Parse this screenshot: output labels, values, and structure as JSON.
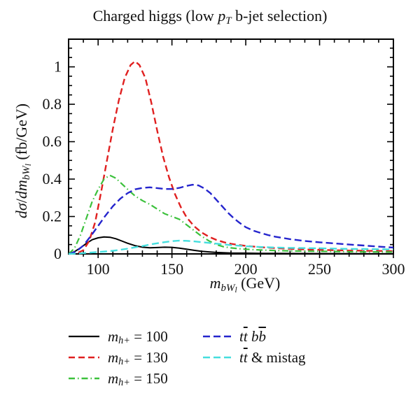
{
  "chart_data": {
    "type": "line",
    "title": "Charged higgs (low pT b-jet selection)",
    "title_rich": [
      [
        "r",
        "Charged higgs (low "
      ],
      [
        "i",
        "p"
      ],
      [
        "subi",
        "T"
      ],
      [
        "r",
        " b-jet selection)"
      ]
    ],
    "xlabel": "m_bWl (GeV)",
    "xlabel_rich": [
      [
        "i",
        "m"
      ],
      [
        "subi",
        "bW"
      ],
      [
        "subsubi",
        "l"
      ],
      [
        "r",
        " (GeV)"
      ]
    ],
    "ylabel": "dσ/dm_bWl (fb/GeV)",
    "ylabel_rich": [
      [
        "i",
        "dσ"
      ],
      [
        "r",
        "/"
      ],
      [
        "i",
        "dm"
      ],
      [
        "subi",
        "bW"
      ],
      [
        "subsubi",
        "l"
      ],
      [
        "r",
        " (fb/GeV)"
      ]
    ],
    "xlim": [
      80,
      300
    ],
    "ylim": [
      0,
      1.148
    ],
    "x_major_ticks": [
      100,
      150,
      200,
      250,
      300
    ],
    "x_major_labels": [
      "100",
      "150",
      "200",
      "250",
      "300"
    ],
    "x_minor_step": 10,
    "y_major_ticks": [
      0,
      0.2,
      0.4,
      0.6,
      0.8,
      1
    ],
    "y_major_labels": [
      "0",
      "0.2",
      "0.4",
      "0.6",
      "0.8",
      "1"
    ],
    "y_minor_step": 0.05,
    "grid": false,
    "legend_position": "below-two-columns",
    "legend_columns": [
      [
        0,
        1,
        2
      ],
      [
        3,
        4
      ]
    ],
    "axis_color": "#000000",
    "series": [
      {
        "name": "mh-100",
        "label": "m_h+ = 100",
        "label_rich": [
          [
            "i",
            "m"
          ],
          [
            "subi",
            "h+"
          ],
          [
            "r",
            " = 100"
          ]
        ],
        "color": "#000000",
        "width": 2,
        "dash": [],
        "points": [
          [
            80,
            0
          ],
          [
            84,
            0.012
          ],
          [
            88,
            0.032
          ],
          [
            92,
            0.056
          ],
          [
            96,
            0.076
          ],
          [
            100,
            0.086
          ],
          [
            104,
            0.091
          ],
          [
            108,
            0.089
          ],
          [
            112,
            0.081
          ],
          [
            116,
            0.069
          ],
          [
            120,
            0.057
          ],
          [
            125,
            0.044
          ],
          [
            130,
            0.036
          ],
          [
            135,
            0.033
          ],
          [
            140,
            0.034
          ],
          [
            145,
            0.036
          ],
          [
            150,
            0.035
          ],
          [
            155,
            0.031
          ],
          [
            160,
            0.025
          ],
          [
            165,
            0.019
          ],
          [
            170,
            0.014
          ],
          [
            175,
            0.011
          ],
          [
            180,
            0.008
          ],
          [
            190,
            0.005
          ],
          [
            200,
            0.004
          ],
          [
            210,
            0.003
          ],
          [
            220,
            0.0025
          ],
          [
            240,
            0.002
          ],
          [
            260,
            0.0015
          ],
          [
            280,
            0.001
          ],
          [
            300,
            0.001
          ]
        ]
      },
      {
        "name": "mh-130",
        "label": "m_h+ = 130",
        "label_rich": [
          [
            "i",
            "m"
          ],
          [
            "subi",
            "h+"
          ],
          [
            "r",
            " = 130"
          ]
        ],
        "color": "#e02020",
        "width": 2.4,
        "dash": [
          9,
          5
        ],
        "points": [
          [
            80,
            0
          ],
          [
            86,
            0.005
          ],
          [
            90,
            0.02
          ],
          [
            94,
            0.07
          ],
          [
            98,
            0.17
          ],
          [
            102,
            0.33
          ],
          [
            106,
            0.5
          ],
          [
            110,
            0.67
          ],
          [
            114,
            0.82
          ],
          [
            118,
            0.94
          ],
          [
            122,
            1.01
          ],
          [
            125,
            1.03
          ],
          [
            128,
            1.01
          ],
          [
            132,
            0.94
          ],
          [
            136,
            0.81
          ],
          [
            140,
            0.66
          ],
          [
            144,
            0.52
          ],
          [
            148,
            0.41
          ],
          [
            152,
            0.32
          ],
          [
            156,
            0.25
          ],
          [
            160,
            0.195
          ],
          [
            165,
            0.148
          ],
          [
            170,
            0.115
          ],
          [
            175,
            0.092
          ],
          [
            180,
            0.075
          ],
          [
            185,
            0.063
          ],
          [
            190,
            0.054
          ],
          [
            195,
            0.048
          ],
          [
            200,
            0.043
          ],
          [
            210,
            0.036
          ],
          [
            220,
            0.031
          ],
          [
            230,
            0.027
          ],
          [
            240,
            0.024
          ],
          [
            250,
            0.022
          ],
          [
            260,
            0.02
          ],
          [
            270,
            0.018
          ],
          [
            280,
            0.017
          ],
          [
            290,
            0.016
          ],
          [
            300,
            0.015
          ]
        ]
      },
      {
        "name": "mh-150",
        "label": "m_h+ = 150",
        "label_rich": [
          [
            "i",
            "m"
          ],
          [
            "subi",
            "h+"
          ],
          [
            "r",
            " = 150"
          ]
        ],
        "color": "#3cc13c",
        "width": 2.2,
        "dash": [
          9,
          4,
          1.5,
          4
        ],
        "points": [
          [
            80,
            0
          ],
          [
            84,
            0.03
          ],
          [
            88,
            0.1
          ],
          [
            92,
            0.19
          ],
          [
            96,
            0.28
          ],
          [
            100,
            0.345
          ],
          [
            104,
            0.4
          ],
          [
            108,
            0.42
          ],
          [
            112,
            0.405
          ],
          [
            116,
            0.375
          ],
          [
            120,
            0.345
          ],
          [
            125,
            0.31
          ],
          [
            130,
            0.285
          ],
          [
            135,
            0.265
          ],
          [
            140,
            0.24
          ],
          [
            145,
            0.215
          ],
          [
            150,
            0.2
          ],
          [
            155,
            0.185
          ],
          [
            160,
            0.155
          ],
          [
            165,
            0.125
          ],
          [
            170,
            0.095
          ],
          [
            175,
            0.07
          ],
          [
            180,
            0.05
          ],
          [
            185,
            0.038
          ],
          [
            190,
            0.032
          ],
          [
            195,
            0.028
          ],
          [
            200,
            0.025
          ],
          [
            210,
            0.021
          ],
          [
            220,
            0.018
          ],
          [
            230,
            0.016
          ],
          [
            240,
            0.015
          ],
          [
            250,
            0.014
          ],
          [
            260,
            0.013
          ],
          [
            270,
            0.012
          ],
          [
            280,
            0.011
          ],
          [
            290,
            0.011
          ],
          [
            300,
            0.01
          ]
        ]
      },
      {
        "name": "ttbb",
        "label": "tt bb",
        "label_rich": [
          [
            "i",
            "t"
          ],
          [
            "iov",
            "t"
          ],
          [
            "r",
            " "
          ],
          [
            "i",
            "b"
          ],
          [
            "iov",
            "b"
          ]
        ],
        "color": "#2525cd",
        "width": 2.4,
        "dash": [
          10,
          5
        ],
        "points": [
          [
            80,
            0
          ],
          [
            85,
            0.012
          ],
          [
            90,
            0.045
          ],
          [
            95,
            0.095
          ],
          [
            100,
            0.15
          ],
          [
            105,
            0.205
          ],
          [
            110,
            0.255
          ],
          [
            115,
            0.295
          ],
          [
            120,
            0.325
          ],
          [
            125,
            0.345
          ],
          [
            130,
            0.353
          ],
          [
            135,
            0.356
          ],
          [
            140,
            0.352
          ],
          [
            145,
            0.347
          ],
          [
            150,
            0.347
          ],
          [
            155,
            0.353
          ],
          [
            160,
            0.364
          ],
          [
            164,
            0.37
          ],
          [
            168,
            0.366
          ],
          [
            172,
            0.35
          ],
          [
            176,
            0.325
          ],
          [
            180,
            0.29
          ],
          [
            184,
            0.255
          ],
          [
            188,
            0.22
          ],
          [
            192,
            0.19
          ],
          [
            196,
            0.165
          ],
          [
            200,
            0.143
          ],
          [
            205,
            0.125
          ],
          [
            210,
            0.112
          ],
          [
            215,
            0.101
          ],
          [
            220,
            0.092
          ],
          [
            230,
            0.079
          ],
          [
            240,
            0.069
          ],
          [
            250,
            0.062
          ],
          [
            260,
            0.056
          ],
          [
            270,
            0.05
          ],
          [
            280,
            0.045
          ],
          [
            290,
            0.039
          ],
          [
            300,
            0.034
          ]
        ]
      },
      {
        "name": "tt-mistag",
        "label": "tt & mistag",
        "label_rich": [
          [
            "i",
            "t"
          ],
          [
            "iov",
            "t"
          ],
          [
            "r",
            " & mistag"
          ]
        ],
        "color": "#45dede",
        "width": 2.4,
        "dash": [
          10,
          5
        ],
        "points": [
          [
            80,
            0
          ],
          [
            85,
            0.002
          ],
          [
            90,
            0.004
          ],
          [
            95,
            0.007
          ],
          [
            100,
            0.01
          ],
          [
            105,
            0.013
          ],
          [
            110,
            0.017
          ],
          [
            115,
            0.022
          ],
          [
            120,
            0.028
          ],
          [
            125,
            0.035
          ],
          [
            130,
            0.042
          ],
          [
            135,
            0.05
          ],
          [
            140,
            0.057
          ],
          [
            145,
            0.063
          ],
          [
            150,
            0.068
          ],
          [
            155,
            0.071
          ],
          [
            160,
            0.07
          ],
          [
            165,
            0.067
          ],
          [
            170,
            0.063
          ],
          [
            175,
            0.059
          ],
          [
            180,
            0.055
          ],
          [
            185,
            0.051
          ],
          [
            190,
            0.047
          ],
          [
            195,
            0.044
          ],
          [
            200,
            0.041
          ],
          [
            210,
            0.037
          ],
          [
            220,
            0.034
          ],
          [
            230,
            0.032
          ],
          [
            240,
            0.031
          ],
          [
            250,
            0.03
          ],
          [
            260,
            0.028
          ],
          [
            270,
            0.027
          ],
          [
            280,
            0.026
          ],
          [
            290,
            0.025
          ],
          [
            300,
            0.024
          ]
        ]
      }
    ]
  }
}
